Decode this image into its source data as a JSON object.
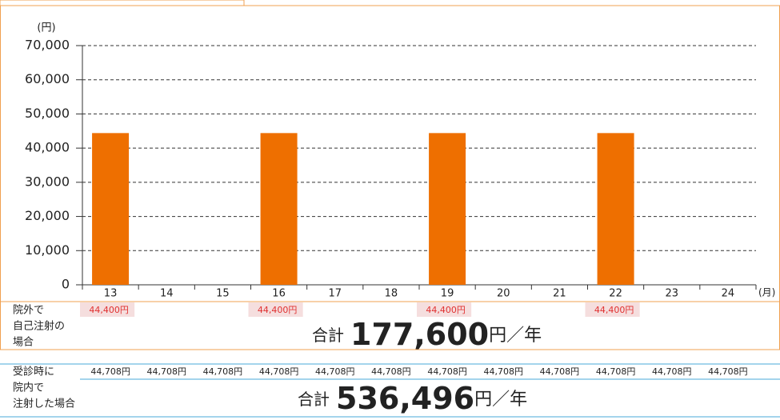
{
  "chart_data": {
    "type": "bar",
    "y_label": "(円)",
    "x_label": "(月)",
    "categories": [
      "13",
      "14",
      "15",
      "16",
      "17",
      "18",
      "19",
      "20",
      "21",
      "22",
      "23",
      "24"
    ],
    "values": [
      44400,
      null,
      null,
      44400,
      null,
      null,
      44400,
      null,
      null,
      44400,
      null,
      null
    ],
    "value_labels": [
      "44,400円",
      null,
      null,
      "44,400円",
      null,
      null,
      "44,400円",
      null,
      null,
      "44,400円",
      null,
      null
    ],
    "color": "#ee6f00",
    "ylim": [
      0,
      70000
    ],
    "yticks": [
      0,
      {
        "value": 10000,
        "label": "10,000"
      },
      {
        "value": 20000,
        "label": "20,000"
      },
      {
        "value": 30000,
        "label": "30,000"
      },
      {
        "value": 40000,
        "label": "40,000"
      },
      {
        "value": 50000,
        "label": "50,000"
      },
      {
        "value": 60000,
        "label": "60,000"
      },
      {
        "value": 70000,
        "label": "70,000"
      }
    ],
    "grid": true
  },
  "outpatient": {
    "label_lines": [
      "院外で",
      "自己注射の",
      "場合"
    ],
    "total": {
      "prefix": "合計",
      "amount": "177,600",
      "unit": "円",
      "per": "／年"
    }
  },
  "in_clinic": {
    "label_lines": [
      "受診時に",
      "院内で",
      "注射した場合"
    ],
    "amounts": [
      "44,708円",
      "44,708円",
      "44,708円",
      "44,708円",
      "44,708円",
      "44,708円",
      "44,708円",
      "44,708円",
      "44,708円",
      "44,708円",
      "44,708円",
      "44,708円"
    ],
    "total": {
      "prefix": "合計",
      "amount": "536,496",
      "unit": "円",
      "per": "／年"
    }
  }
}
